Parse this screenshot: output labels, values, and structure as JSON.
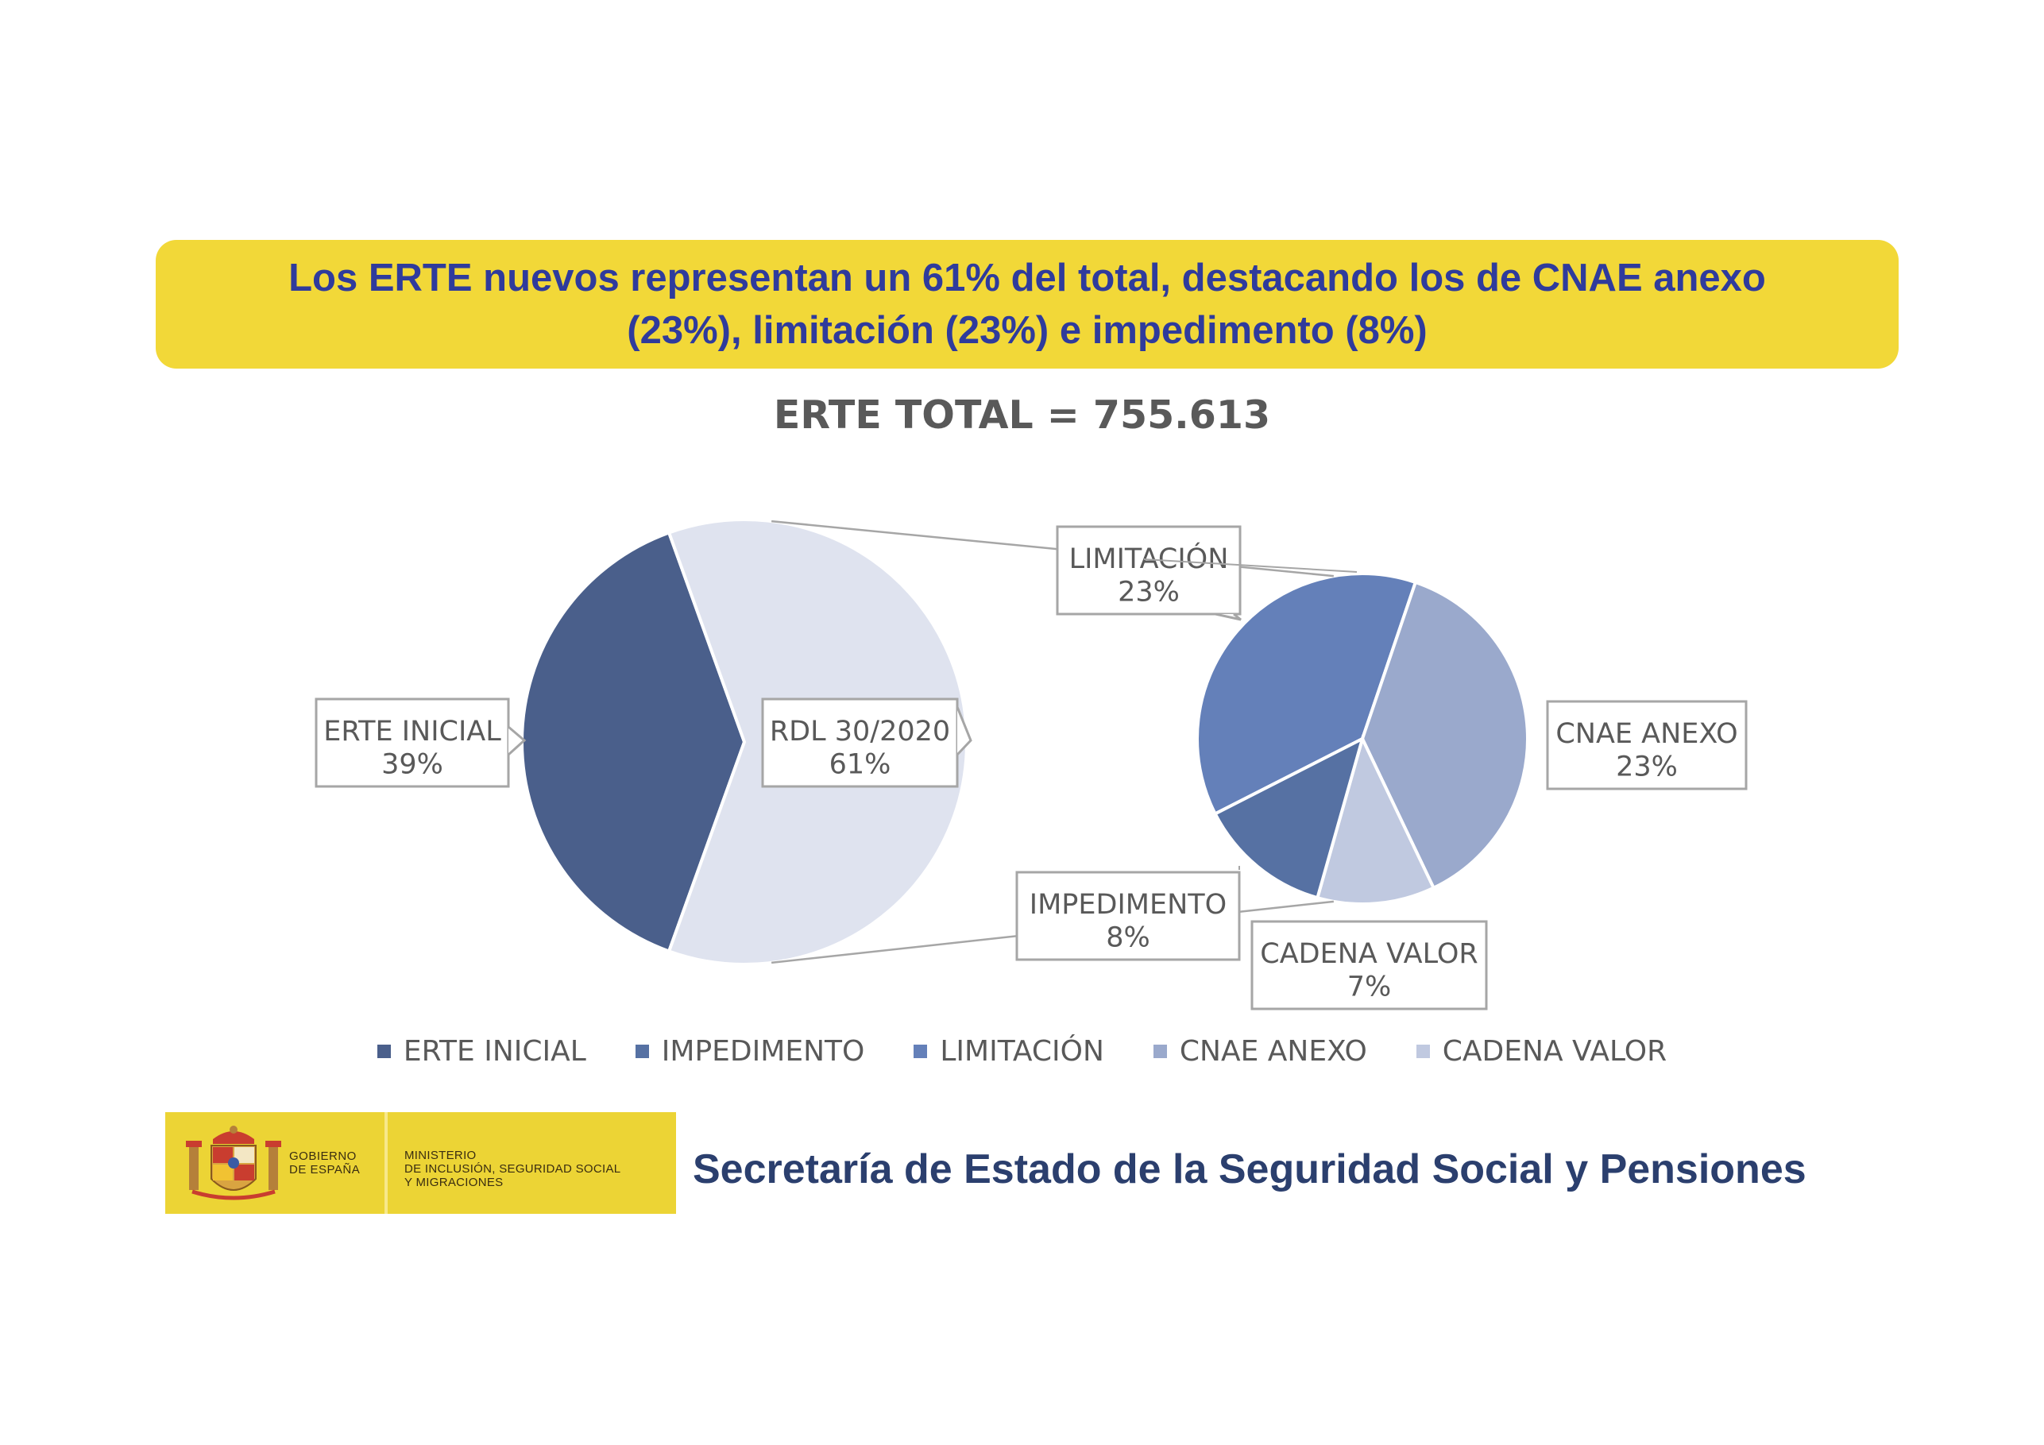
{
  "headline": {
    "line1": "Los ERTE nuevos representan un 61% del total, destacando los de CNAE anexo",
    "line2": "(23%), limitación (23%) e impedimento (8%)"
  },
  "chart_data": {
    "type": "pie",
    "title": "ERTE TOTAL = 755.613",
    "main_pie": {
      "slices": [
        {
          "name": "ERTE INICIAL",
          "value": 39,
          "label": "39%",
          "color": "#4a5f8b"
        },
        {
          "name": "RDL 30/2020",
          "value": 61,
          "label": "61%",
          "color": "#dfe3ef"
        }
      ]
    },
    "breakdown_pie": {
      "of": "RDL 30/2020",
      "slices": [
        {
          "name": "LIMITACIÓN",
          "value": 23,
          "label": "23%",
          "color": "#6480b9"
        },
        {
          "name": "CNAE ANEXO",
          "value": 23,
          "label": "23%",
          "color": "#9aa9cc"
        },
        {
          "name": "CADENA VALOR",
          "value": 7,
          "label": "7%",
          "color": "#c0c9e0"
        },
        {
          "name": "IMPEDIMENTO",
          "value": 8,
          "label": "8%",
          "color": "#5671a3"
        }
      ]
    },
    "legend": [
      {
        "label": "ERTE INICIAL",
        "color": "#4a5f8b"
      },
      {
        "label": "IMPEDIMENTO",
        "color": "#5671a3"
      },
      {
        "label": "LIMITACIÓN",
        "color": "#6480b9"
      },
      {
        "label": "CNAE ANEXO",
        "color": "#9aa9cc"
      },
      {
        "label": "CADENA VALOR",
        "color": "#c0c9e0"
      }
    ],
    "legend_position": "bottom"
  },
  "footer": {
    "gov_line1": "GOBIERNO",
    "gov_line2": "DE ESPAÑA",
    "ministry_line1": "MINISTERIO",
    "ministry_line2": "DE INCLUSIÓN, SEGURIDAD SOCIAL",
    "ministry_line3": "Y MIGRACIONES",
    "secretaria": "Secretaría de Estado de la Seguridad Social y Pensiones"
  }
}
